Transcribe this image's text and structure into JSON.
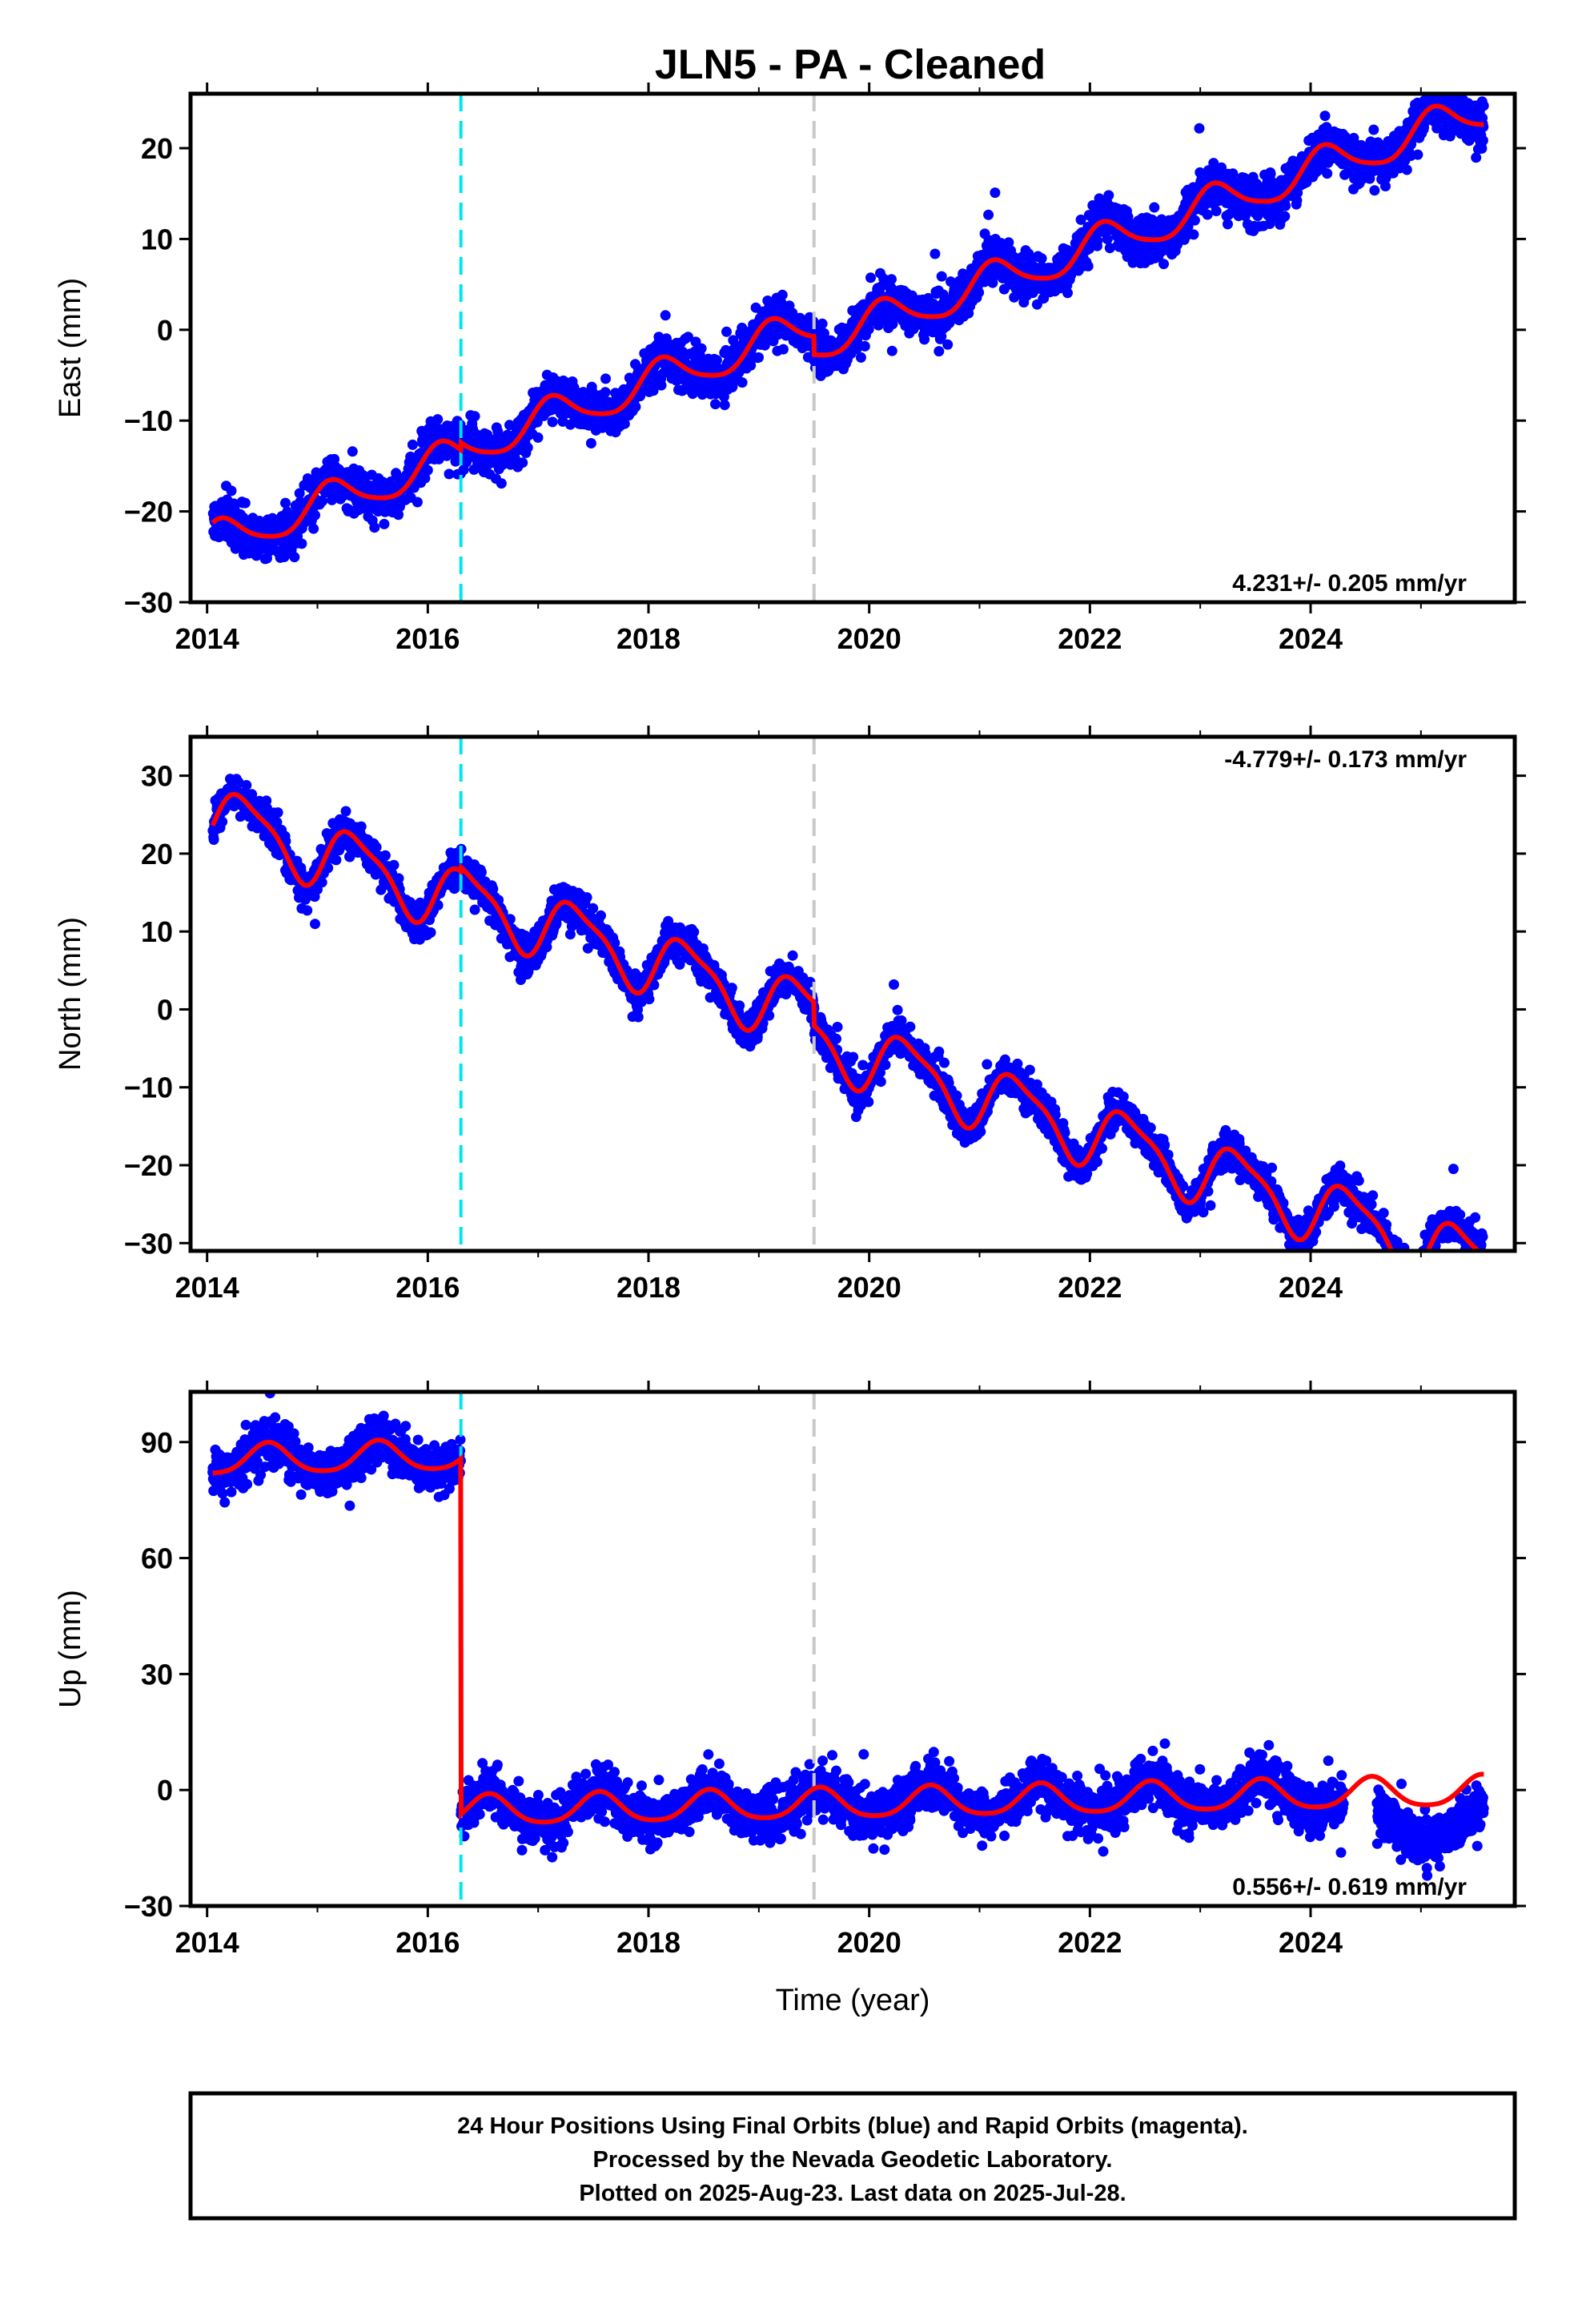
{
  "title": "JLN5  - PA - Cleaned",
  "colors": {
    "points": "#0000ff",
    "model": "#ff0000",
    "event_cyan": "#00e5ee",
    "event_gray": "#c8c8c8",
    "frame": "#000000"
  },
  "chart_data": [
    {
      "type": "scatter",
      "name": "east",
      "ylabel": "East (mm)",
      "xlabel": "",
      "xlim": [
        2013.85,
        2025.85
      ],
      "ylim": [
        -30,
        26
      ],
      "xticks": [
        2014,
        2016,
        2018,
        2020,
        2022,
        2024
      ],
      "yticks": [
        -30,
        -20,
        -10,
        0,
        10,
        20
      ],
      "rate_text": "4.231+/- 0.205 mm/yr",
      "rate_position": "bottom-right",
      "model": {
        "intercept_at_2014": -23.6,
        "rate_mm_per_yr": 4.231,
        "annual_sin": 1.5,
        "annual_cos": 1.4,
        "semiannual_sin": 0.3,
        "semiannual_cos": 0.2,
        "offsets": [
          {
            "t": 2016.3,
            "dy": 0.8
          },
          {
            "t": 2019.5,
            "dy": -2.0
          }
        ]
      },
      "scatter_sd": 1.2,
      "gaps": []
    },
    {
      "type": "scatter",
      "name": "north",
      "ylabel": "North (mm)",
      "xlabel": "",
      "xlim": [
        2013.85,
        2025.85
      ],
      "ylim": [
        -31,
        35
      ],
      "xticks": [
        2014,
        2016,
        2018,
        2020,
        2022,
        2024
      ],
      "yticks": [
        -30,
        -20,
        -10,
        0,
        10,
        20,
        30
      ],
      "rate_text": "-4.779+/- 0.173 mm/yr",
      "rate_position": "top-right",
      "model": {
        "intercept_at_2014": 25.0,
        "rate_mm_per_yr": -4.779,
        "annual_sin": 3.2,
        "annual_cos": -2.3,
        "semiannual_sin": 0.9,
        "semiannual_cos": -0.6,
        "offsets": [
          {
            "t": 2016.3,
            "dy": 0.5
          },
          {
            "t": 2019.5,
            "dy": -3.0
          }
        ]
      },
      "scatter_sd": 1.1,
      "gaps": []
    },
    {
      "type": "scatter",
      "name": "up",
      "ylabel": "Up (mm)",
      "xlabel": "Time (year)",
      "xlim": [
        2013.85,
        2025.85
      ],
      "ylim": [
        -30,
        103
      ],
      "xticks": [
        2014,
        2016,
        2018,
        2020,
        2022,
        2024
      ],
      "yticks": [
        -30,
        0,
        30,
        60,
        90
      ],
      "rate_text": "0.556+/- 0.619 mm/yr",
      "rate_position": "bottom-right",
      "model": {
        "intercept_at_2014": 85.2,
        "rate_mm_per_yr": 0.556,
        "annual_sin": -1.3,
        "annual_cos": -3.6,
        "semiannual_sin": 0.4,
        "semiannual_cos": 0.5,
        "offsets": [
          {
            "t": 2016.3,
            "dy": -92.0
          }
        ]
      },
      "scatter_sd": 3.0,
      "gaps": [
        [
          2024.3,
          2024.6
        ]
      ],
      "data_shift": [
        {
          "from": 2024.6,
          "dy": -9.0
        }
      ]
    }
  ],
  "event_lines": [
    {
      "t": 2016.3,
      "color": "cyan"
    },
    {
      "t": 2019.5,
      "color": "gray"
    }
  ],
  "data_start": 2014.05,
  "data_end": 2025.57,
  "footer": {
    "line1": "24 Hour Positions Using Final Orbits (blue) and Rapid Orbits (magenta).",
    "line2": "Processed by the Nevada Geodetic Laboratory.",
    "line3": "Plotted on 2025-Aug-23. Last data on 2025-Jul-28."
  }
}
